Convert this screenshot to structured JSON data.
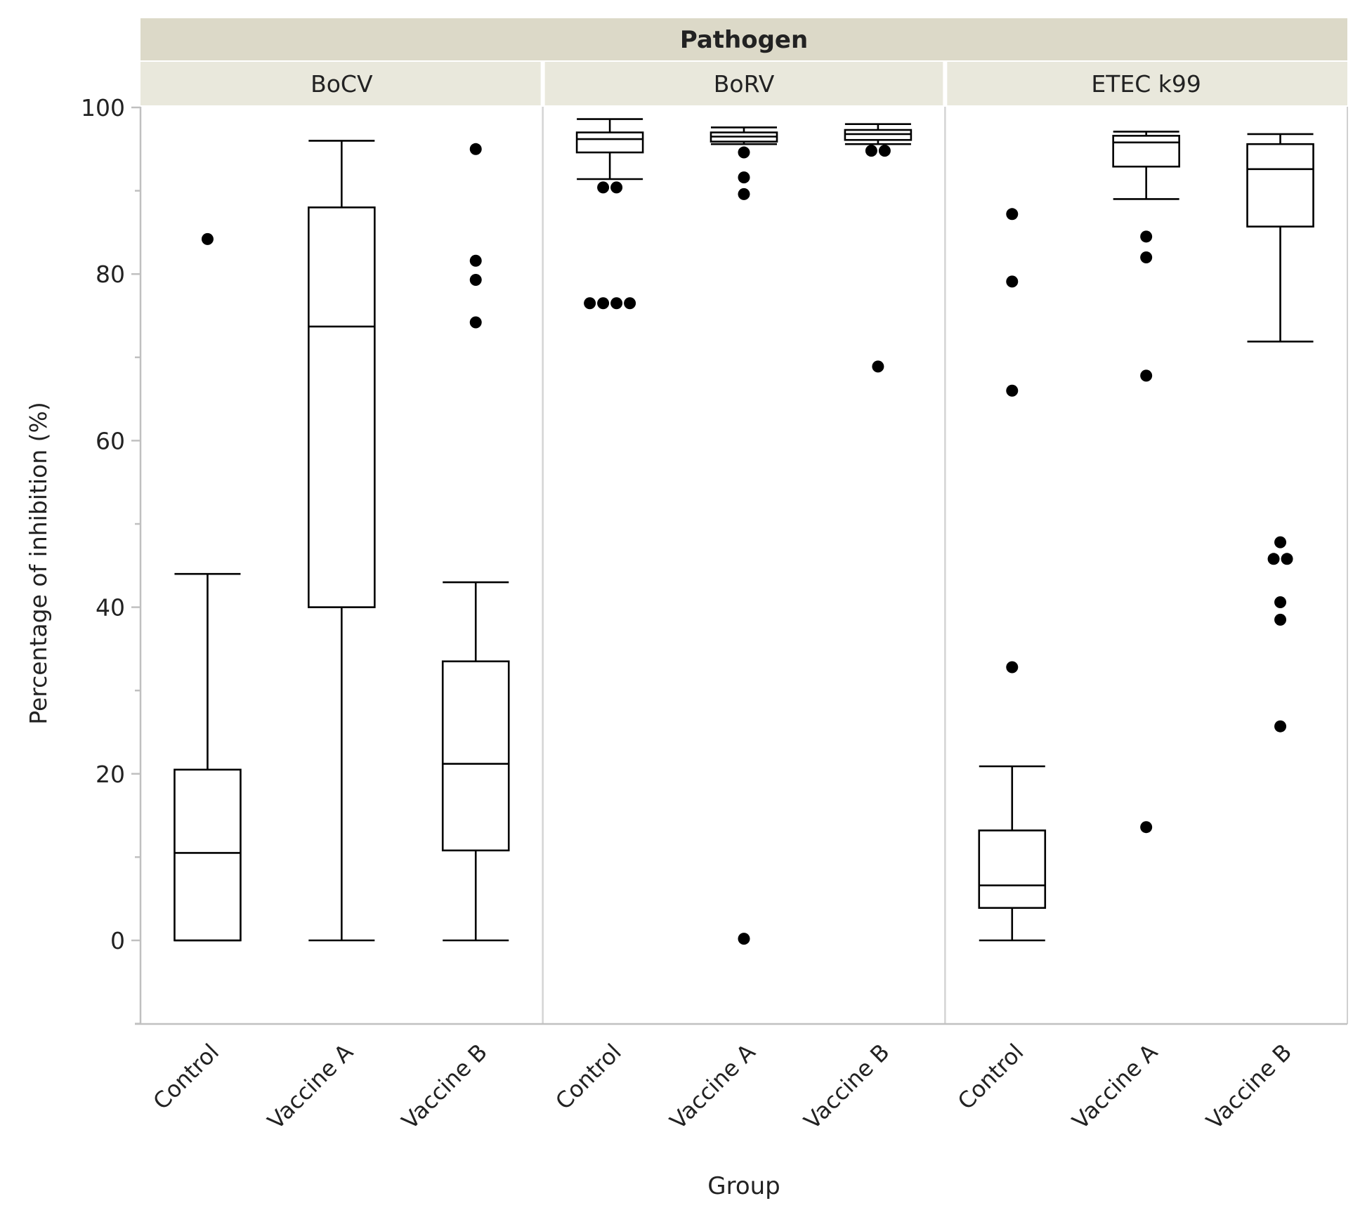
{
  "chart_data": {
    "type": "boxplot",
    "title": "Pathogen",
    "xlabel": "Group",
    "ylabel": "Percentage of inhibition (%)",
    "ylim": [
      -10,
      105
    ],
    "yticks": [
      0,
      20,
      40,
      60,
      80,
      100
    ],
    "grid": false,
    "colors": {
      "strip": "#e9e8dc",
      "title_strip": "#dcd9c8",
      "box": "#000000",
      "point": "#000000",
      "frame": "#c0c0c0",
      "divider": "#d4d4d4"
    },
    "panels": [
      {
        "name": "BoCV",
        "groups": [
          {
            "name": "Control",
            "min": 0,
            "q1": 0,
            "median": 10.5,
            "q3": 20.5,
            "max": 44,
            "outliers": [
              84.2
            ]
          },
          {
            "name": "Vaccine A",
            "min": 0,
            "q1": 40,
            "median": 73.7,
            "q3": 88,
            "max": 96,
            "outliers": []
          },
          {
            "name": "Vaccine B",
            "min": 0,
            "q1": 10.8,
            "median": 21.2,
            "q3": 33.5,
            "max": 43,
            "outliers": [
              95,
              81.6,
              79.3,
              74.2
            ]
          }
        ]
      },
      {
        "name": "BoRV",
        "groups": [
          {
            "name": "Control",
            "min": 91.4,
            "q1": 94.6,
            "median": 96.2,
            "q3": 97,
            "max": 98.6,
            "outliers": [
              90.4,
              90.4,
              76.5,
              76.5,
              76.5,
              76.5
            ]
          },
          {
            "name": "Vaccine A",
            "min": 95.6,
            "q1": 95.9,
            "median": 96.5,
            "q3": 97,
            "max": 97.6,
            "outliers": [
              94.6,
              91.6,
              89.6,
              0.2
            ]
          },
          {
            "name": "Vaccine B",
            "min": 95.6,
            "q1": 96.1,
            "median": 96.8,
            "q3": 97.3,
            "max": 98,
            "outliers": [
              94.8,
              94.8,
              68.9
            ]
          }
        ]
      },
      {
        "name": "ETEC k99",
        "groups": [
          {
            "name": "Control",
            "min": 0,
            "q1": 3.9,
            "median": 6.6,
            "q3": 13.2,
            "max": 20.9,
            "outliers": [
              87.2,
              79.1,
              66,
              32.8
            ]
          },
          {
            "name": "Vaccine A",
            "min": 89,
            "q1": 92.9,
            "median": 95.8,
            "q3": 96.6,
            "max": 97.1,
            "outliers": [
              84.5,
              82,
              67.8,
              13.6
            ]
          },
          {
            "name": "Vaccine B",
            "min": 71.9,
            "q1": 85.7,
            "median": 92.6,
            "q3": 95.6,
            "max": 96.8,
            "outliers": [
              47.8,
              45.8,
              45.8,
              40.6,
              38.5,
              25.7
            ]
          }
        ]
      }
    ]
  }
}
